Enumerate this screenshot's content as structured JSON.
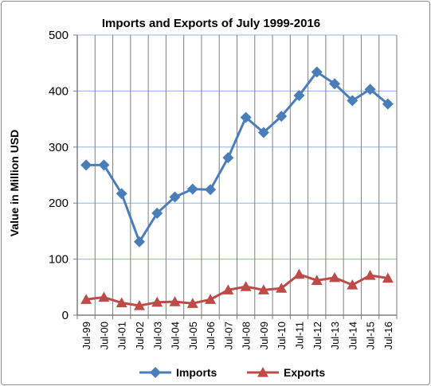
{
  "chart_data": {
    "type": "line",
    "title": "Imports and Exports of July 1999-2016",
    "xlabel": "",
    "ylabel": "Value in  Million   USD",
    "ylim": [
      0,
      500
    ],
    "yticks": [
      "0",
      "100",
      "200",
      "300",
      "400",
      "500"
    ],
    "grid": true,
    "legend": "bottom",
    "categories": [
      "Jul-99",
      "Jul-00",
      "Jul-01",
      "Jul-02",
      "Jul-03",
      "Jul-04",
      "Jul-05",
      "Jul-06",
      "Jul-07",
      "Jul-08",
      "Jul-09",
      "Jul-10",
      "Jul-11",
      "Jul-12",
      "Jul-13",
      "Jul-14",
      "Jul-15",
      "Jul-16"
    ],
    "series": [
      {
        "name": "Imports",
        "color": "#4a7ebb",
        "marker": "diamond",
        "values": [
          268,
          268,
          217,
          131,
          182,
          211,
          225,
          224,
          281,
          353,
          326,
          355,
          392,
          434,
          413,
          383,
          403,
          377
        ]
      },
      {
        "name": "Exports",
        "color": "#be4b48",
        "marker": "triangle",
        "values": [
          28,
          32,
          22,
          17,
          23,
          24,
          21,
          28,
          45,
          51,
          45,
          48,
          73,
          62,
          67,
          54,
          71,
          66
        ]
      }
    ],
    "grid_color": "#8eb4e3"
  }
}
